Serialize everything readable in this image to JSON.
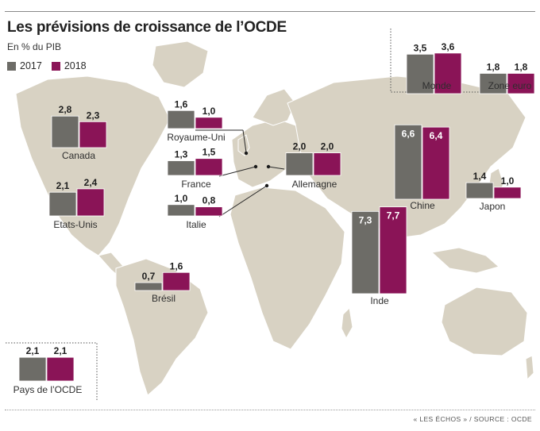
{
  "header": {
    "title": "Les prévisions de croissance de l’OCDE",
    "subtitle": "En % du PIB"
  },
  "legend": [
    {
      "label": "2017",
      "color": "#6d6c67"
    },
    {
      "label": "2018",
      "color": "#8a1457"
    }
  ],
  "source": "« LES ÉCHOS » / SOURCE : OCDE",
  "colors": {
    "land": "#d8d2c3",
    "land_dark": "#c4bba7",
    "map_background": "#ffffff",
    "s2017": "#6d6c67",
    "s2018": "#8a1457"
  },
  "chart_data": {
    "type": "bar",
    "title": "Les prévisions de croissance de l’OCDE",
    "subtitle": "En % du PIB",
    "unit": "% du PIB",
    "series_names": [
      "2017",
      "2018"
    ],
    "categories": [
      "Monde",
      "Zone euro",
      "Canada",
      "Royaume-Uni",
      "France",
      "Allemagne",
      "Italie",
      "Etats-Unis",
      "Chine",
      "Japon",
      "Inde",
      "Brésil",
      "Pays de l’OCDE"
    ],
    "series": [
      {
        "name": "2017",
        "values": [
          3.5,
          1.8,
          2.8,
          1.6,
          1.3,
          2.0,
          1.0,
          2.1,
          6.6,
          1.4,
          7.3,
          0.7,
          2.1
        ]
      },
      {
        "name": "2018",
        "values": [
          3.6,
          1.8,
          2.3,
          1.0,
          1.5,
          2.0,
          0.8,
          2.4,
          6.4,
          1.0,
          7.7,
          1.6,
          2.1
        ]
      }
    ],
    "value_labels": [
      [
        "3,5",
        "3,6"
      ],
      [
        "1,8",
        "1,8"
      ],
      [
        "2,8",
        "2,3"
      ],
      [
        "1,6",
        "1,0"
      ],
      [
        "1,3",
        "1,5"
      ],
      [
        "2,0",
        "2,0"
      ],
      [
        "1,0",
        "0,8"
      ],
      [
        "2,1",
        "2,4"
      ],
      [
        "6,6",
        "6,4"
      ],
      [
        "1,4",
        "1,0"
      ],
      [
        "7,3",
        "7,7"
      ],
      [
        "0,7",
        "1,6"
      ],
      [
        "2,1",
        "2,1"
      ]
    ]
  }
}
